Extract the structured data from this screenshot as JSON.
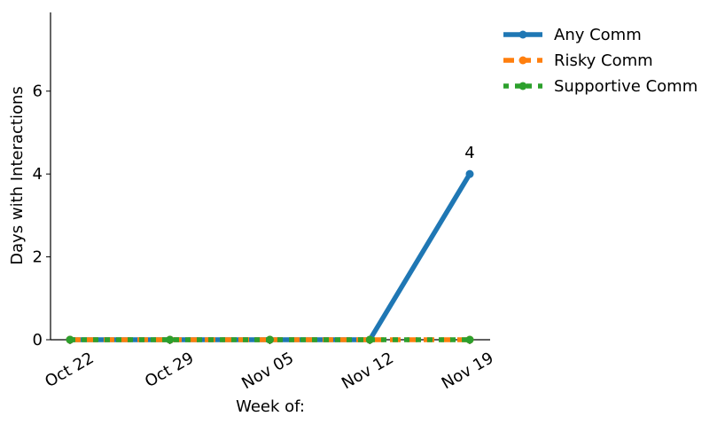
{
  "chart_data": {
    "type": "line",
    "title": "",
    "xlabel": "Week of:",
    "ylabel": "Days with Interactions",
    "categories": [
      "Oct 22",
      "Oct 29",
      "Nov 05",
      "Nov 12",
      "Nov 19"
    ],
    "ylim": [
      0,
      7.9
    ],
    "yticks": [
      0,
      2,
      4,
      6
    ],
    "grid": false,
    "legend_position": "top-right outside",
    "series": [
      {
        "name": "Any Comm",
        "values": [
          0,
          0,
          0,
          0,
          4
        ],
        "color": "#1f77b4",
        "style": "solid"
      },
      {
        "name": "Risky Comm",
        "values": [
          0,
          0,
          0,
          0,
          0
        ],
        "color": "#ff7f0e",
        "style": "dashed"
      },
      {
        "name": "Supportive Comm",
        "values": [
          0,
          0,
          0,
          0,
          0
        ],
        "color": "#2ca02c",
        "style": "dotted"
      }
    ],
    "annotations": [
      {
        "series": "Any Comm",
        "category": "Nov 19",
        "text": "4"
      }
    ]
  }
}
